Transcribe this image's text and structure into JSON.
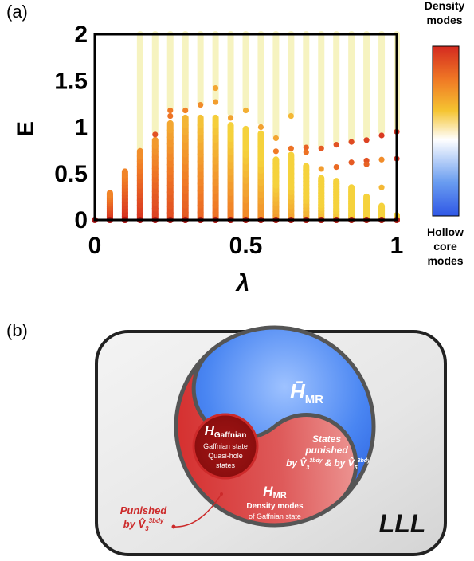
{
  "panel_a_label": "(a)",
  "panel_b_label": "(b)",
  "chart_data": {
    "type": "scatter",
    "xlabel": "λ",
    "ylabel": "E",
    "xlim": [
      0,
      1
    ],
    "ylim": [
      0,
      2
    ],
    "xticks": [
      "0",
      "0.5",
      "1"
    ],
    "yticks": [
      "0",
      "0.5",
      "1",
      "1.5",
      "2"
    ],
    "colorbar": {
      "top_label": [
        "Density",
        "modes"
      ],
      "bottom_label": [
        "Hollow",
        "core",
        "modes"
      ],
      "colors": [
        "#d42a20",
        "#f07a25",
        "#f5c431",
        "#ffffff",
        "#6a9df0",
        "#2f57e6"
      ]
    },
    "columns": [
      {
        "x": 0.05,
        "bars": [
          [
            0.0,
            0.29,
            0.0
          ]
        ],
        "points": [],
        "faint": []
      },
      {
        "x": 0.1,
        "bars": [
          [
            0.0,
            0.52,
            0.0
          ]
        ],
        "points": [],
        "faint": []
      },
      {
        "x": 0.15,
        "bars": [
          [
            0.0,
            0.74,
            0.05
          ]
        ],
        "points": [],
        "faint": [
          [
            0.75,
            2.0
          ]
        ]
      },
      {
        "x": 0.2,
        "bars": [
          [
            0.0,
            0.86,
            0.12
          ]
        ],
        "points": [
          [
            0.92,
            0.25
          ]
        ],
        "faint": [
          [
            0.95,
            2.0
          ]
        ]
      },
      {
        "x": 0.25,
        "bars": [
          [
            0.0,
            1.04,
            0.2
          ]
        ],
        "points": [
          [
            1.12,
            0.45
          ],
          [
            1.18,
            0.5
          ]
        ],
        "faint": [
          [
            1.2,
            2.0
          ]
        ]
      },
      {
        "x": 0.3,
        "bars": [
          [
            0.0,
            1.1,
            0.28
          ]
        ],
        "points": [
          [
            1.18,
            0.55
          ]
        ],
        "faint": [
          [
            1.2,
            2.0
          ]
        ]
      },
      {
        "x": 0.35,
        "bars": [
          [
            0.0,
            1.1,
            0.35
          ]
        ],
        "points": [
          [
            1.24,
            0.6
          ]
        ],
        "faint": [
          [
            1.25,
            2.0
          ]
        ]
      },
      {
        "x": 0.4,
        "bars": [
          [
            0.0,
            1.1,
            0.42
          ]
        ],
        "points": [
          [
            1.42,
            0.75
          ],
          [
            1.27,
            0.7
          ]
        ],
        "faint": [
          [
            1.3,
            2.0
          ]
        ]
      },
      {
        "x": 0.45,
        "bars": [
          [
            0.0,
            1.02,
            0.48
          ]
        ],
        "points": [
          [
            1.1,
            0.72
          ]
        ],
        "faint": [
          [
            1.15,
            2.0
          ]
        ]
      },
      {
        "x": 0.5,
        "bars": [
          [
            0.0,
            0.98,
            0.55
          ]
        ],
        "points": [
          [
            1.18,
            0.8
          ]
        ],
        "faint": [
          [
            1.2,
            2.0
          ]
        ]
      },
      {
        "x": 0.55,
        "bars": [
          [
            0.0,
            0.93,
            0.6
          ]
        ],
        "points": [
          [
            1.0,
            0.72
          ]
        ],
        "faint": [
          [
            1.05,
            2.0
          ]
        ]
      },
      {
        "x": 0.6,
        "bars": [
          [
            0.0,
            0.65,
            0.65
          ]
        ],
        "points": [
          [
            0.74,
            0.5
          ],
          [
            0.88,
            0.75
          ]
        ],
        "faint": [
          [
            0.9,
            2.0
          ]
        ]
      },
      {
        "x": 0.65,
        "bars": [
          [
            0.0,
            0.7,
            0.7
          ]
        ],
        "points": [
          [
            1.12,
            0.85
          ],
          [
            0.77,
            0.45
          ]
        ],
        "faint": [
          [
            1.15,
            2.0
          ]
        ]
      },
      {
        "x": 0.7,
        "bars": [
          [
            0.0,
            0.58,
            0.75
          ]
        ],
        "points": [
          [
            0.78,
            0.35
          ],
          [
            0.73,
            0.45
          ]
        ],
        "faint": [
          [
            0.8,
            2.0
          ]
        ]
      },
      {
        "x": 0.75,
        "bars": [
          [
            0.0,
            0.45,
            0.8
          ]
        ],
        "points": [
          [
            0.77,
            0.3
          ],
          [
            0.55,
            0.7
          ]
        ],
        "faint": [
          [
            0.8,
            2.0
          ]
        ]
      },
      {
        "x": 0.8,
        "bars": [
          [
            0.0,
            0.42,
            0.85
          ]
        ],
        "points": [
          [
            0.81,
            0.25
          ],
          [
            0.57,
            0.4
          ]
        ],
        "faint": [
          [
            0.85,
            2.0
          ]
        ]
      },
      {
        "x": 0.85,
        "bars": [
          [
            0.0,
            0.35,
            0.88
          ]
        ],
        "points": [
          [
            0.84,
            0.2
          ],
          [
            0.62,
            0.3
          ]
        ],
        "faint": [
          [
            0.85,
            2.0
          ]
        ]
      },
      {
        "x": 0.9,
        "bars": [
          [
            0.0,
            0.25,
            0.9
          ]
        ],
        "points": [
          [
            0.86,
            0.15
          ],
          [
            0.64,
            0.25
          ],
          [
            0.6,
            0.35
          ]
        ],
        "faint": [
          [
            0.9,
            2.0
          ]
        ]
      },
      {
        "x": 0.95,
        "bars": [
          [
            0.0,
            0.15,
            0.92
          ]
        ],
        "points": [
          [
            0.91,
            0.1
          ],
          [
            0.65,
            0.6
          ],
          [
            0.35,
            0.85
          ]
        ],
        "faint": [
          [
            0.95,
            2.0
          ]
        ]
      },
      {
        "x": 1.0,
        "bars": [
          [
            0.0,
            0.05,
            0.95
          ]
        ],
        "points": [
          [
            0.95,
            0.05
          ],
          [
            0.66,
            0.05
          ]
        ],
        "faint": [
          [
            0.98,
            2.0
          ]
        ]
      }
    ],
    "baseline_points_x": [
      0.0,
      0.05,
      0.1,
      0.15,
      0.2,
      0.25,
      0.3,
      0.35,
      0.4,
      0.45,
      0.5,
      0.55,
      0.6,
      0.65,
      0.7,
      0.75,
      0.8,
      0.85,
      0.9,
      0.95,
      1.0
    ]
  },
  "diagram": {
    "outer_label": "LLL",
    "h_mr_bar_label": "H̄",
    "h_mr_bar_sub": "MR",
    "states_punished": [
      "States",
      "punished"
    ],
    "by_v3_v5": "by V̂",
    "v3_sup": "3bdy",
    "v3_sub": "3",
    "v5_sub": "5",
    "amp": "&",
    "h_gaff_label": "H",
    "h_gaff_sub": "Gaffnian",
    "gaff_desc": [
      "Gaffnian state",
      "Quasi-hole",
      "states"
    ],
    "h_mr_label": "H",
    "h_mr_sub": "MR",
    "density_modes": "Density modes",
    "of_gaffnian": "of Gaffnian state",
    "punished_label": "Punished",
    "by_v3": "by V̂"
  }
}
